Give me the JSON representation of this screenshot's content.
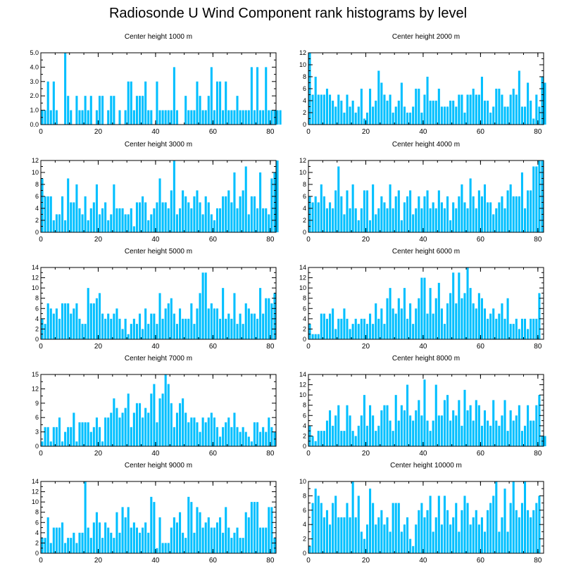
{
  "title": "Radiosonde U Wind Component rank histograms by level",
  "colors": {
    "bar": "#00BFFF",
    "axis": "#000000"
  },
  "chart_data": [
    {
      "type": "bar",
      "title": "Center height 1000 m",
      "xlim": [
        0,
        82
      ],
      "ylim": [
        0,
        5
      ],
      "xticks": [
        0,
        20,
        40,
        60,
        80
      ],
      "yticks": [
        "0.0",
        "1.0",
        "2.0",
        "3.0",
        "4.0",
        "5.0"
      ],
      "values": [
        1,
        1,
        3,
        1,
        3,
        1,
        0,
        0,
        5,
        2,
        1,
        0,
        2,
        1,
        1,
        2,
        1,
        2,
        0,
        1,
        2,
        2,
        0,
        1,
        2,
        2,
        0,
        1,
        0,
        1,
        3,
        3,
        1,
        2,
        2,
        2,
        3,
        1,
        1,
        0,
        3,
        1,
        1,
        1,
        1,
        1,
        4,
        1,
        0,
        0,
        2,
        1,
        1,
        1,
        3,
        2,
        1,
        1,
        2,
        4,
        1,
        3,
        3,
        1,
        3,
        1,
        1,
        1,
        2,
        1,
        1,
        1,
        1,
        4,
        1,
        4,
        1,
        1,
        4,
        1,
        1,
        1,
        1,
        1
      ]
    },
    {
      "type": "bar",
      "title": "Center height 2000 m",
      "xlim": [
        0,
        82
      ],
      "ylim": [
        0,
        12
      ],
      "xticks": [
        0,
        20,
        40,
        60,
        80
      ],
      "yticks": [
        "0",
        "2",
        "4",
        "6",
        "8",
        "10",
        "12"
      ],
      "values": [
        12,
        5,
        8,
        5,
        5,
        5,
        6,
        5,
        4,
        3,
        5,
        4,
        2,
        5,
        3,
        4,
        2,
        3,
        6,
        1,
        2,
        6,
        3,
        4,
        9,
        7,
        5,
        4,
        5,
        2,
        3,
        4,
        7,
        3,
        2,
        2,
        3,
        6,
        6,
        2,
        5,
        8,
        4,
        4,
        4,
        6,
        3,
        3,
        3,
        4,
        4,
        3,
        5,
        5,
        2,
        5,
        5,
        6,
        5,
        5,
        8,
        4,
        4,
        2,
        3,
        6,
        6,
        5,
        3,
        3,
        5,
        6,
        5,
        9,
        3,
        3,
        7,
        4,
        1,
        5,
        3,
        8,
        7
      ]
    },
    {
      "type": "bar",
      "title": "Center height 3000 m",
      "xlim": [
        0,
        82
      ],
      "ylim": [
        0,
        12
      ],
      "xticks": [
        0,
        20,
        40,
        60,
        80
      ],
      "yticks": [
        "0",
        "2",
        "4",
        "6",
        "8",
        "10",
        "12"
      ],
      "values": [
        9,
        6,
        6,
        6,
        2,
        3,
        3,
        6,
        2,
        9,
        5,
        5,
        8,
        4,
        3,
        6,
        2,
        4,
        5,
        8,
        3,
        4,
        5,
        2,
        3,
        8,
        4,
        4,
        4,
        3,
        3,
        4,
        1,
        5,
        5,
        6,
        5,
        2,
        3,
        4,
        5,
        9,
        5,
        5,
        4,
        7,
        12,
        3,
        4,
        7,
        6,
        5,
        4,
        6,
        7,
        5,
        3,
        6,
        5,
        3,
        2,
        4,
        4,
        6,
        6,
        7,
        5,
        10,
        4,
        6,
        7,
        11,
        3,
        6,
        6,
        4,
        10,
        4,
        4,
        3,
        9,
        10,
        12
      ]
    },
    {
      "type": "bar",
      "title": "Center height 4000 m",
      "xlim": [
        0,
        82
      ],
      "ylim": [
        0,
        12
      ],
      "xticks": [
        0,
        20,
        40,
        60,
        80
      ],
      "yticks": [
        "0",
        "2",
        "4",
        "6",
        "8",
        "10",
        "12"
      ],
      "values": [
        6,
        5,
        6,
        5,
        8,
        6,
        4,
        5,
        4,
        7,
        11,
        6,
        3,
        7,
        4,
        8,
        4,
        2,
        4,
        7,
        7,
        2,
        8,
        3,
        4,
        6,
        5,
        4,
        8,
        4,
        6,
        7,
        2,
        5,
        6,
        7,
        3,
        4,
        6,
        4,
        6,
        7,
        4,
        5,
        4,
        7,
        5,
        4,
        6,
        2,
        5,
        4,
        6,
        8,
        5,
        4,
        9,
        6,
        4,
        7,
        6,
        8,
        5,
        5,
        3,
        4,
        5,
        6,
        4,
        7,
        8,
        6,
        6,
        6,
        10,
        4,
        7,
        7,
        11,
        11,
        12,
        12
      ]
    },
    {
      "type": "bar",
      "title": "Center height 5000 m",
      "xlim": [
        0,
        82
      ],
      "ylim": [
        0,
        14
      ],
      "xticks": [
        0,
        20,
        40,
        60,
        80
      ],
      "yticks": [
        "0",
        "2",
        "4",
        "6",
        "8",
        "10",
        "12",
        "14"
      ],
      "values": [
        4,
        3,
        7,
        6,
        5,
        6,
        4,
        7,
        7,
        7,
        5,
        6,
        7,
        4,
        3,
        3,
        10,
        7,
        7,
        8,
        9,
        5,
        4,
        5,
        4,
        5,
        6,
        4,
        2,
        4,
        1,
        3,
        4,
        3,
        5,
        2,
        6,
        3,
        5,
        5,
        3,
        9,
        4,
        6,
        7,
        8,
        5,
        3,
        6,
        4,
        4,
        4,
        7,
        3,
        6,
        9,
        13,
        13,
        6,
        7,
        6,
        6,
        4,
        10,
        4,
        5,
        4,
        9,
        3,
        5,
        3,
        7,
        6,
        5,
        5,
        4,
        10,
        5,
        8,
        8,
        7,
        9
      ]
    },
    {
      "type": "bar",
      "title": "Center height 6000 m",
      "xlim": [
        0,
        82
      ],
      "ylim": [
        0,
        14
      ],
      "xticks": [
        0,
        20,
        40,
        60,
        80
      ],
      "yticks": [
        "0",
        "2",
        "4",
        "6",
        "8",
        "10",
        "12",
        "14"
      ],
      "values": [
        3,
        1,
        1,
        1,
        5,
        5,
        4,
        5,
        6,
        2,
        4,
        4,
        6,
        4,
        2,
        3,
        4,
        3,
        4,
        4,
        3,
        5,
        3,
        7,
        4,
        6,
        3,
        8,
        10,
        6,
        5,
        8,
        6,
        10,
        4,
        7,
        3,
        6,
        8,
        12,
        12,
        5,
        10,
        5,
        8,
        11,
        6,
        3,
        7,
        9,
        13,
        7,
        13,
        8,
        9,
        14,
        10,
        7,
        6,
        9,
        8,
        6,
        4,
        5,
        6,
        4,
        5,
        7,
        4,
        8,
        3,
        3,
        4,
        2,
        4,
        4,
        2,
        4,
        4,
        4,
        9
      ]
    },
    {
      "type": "bar",
      "title": "Center height 7000 m",
      "xlim": [
        0,
        82
      ],
      "ylim": [
        0,
        15
      ],
      "xticks": [
        0,
        20,
        40,
        60,
        80
      ],
      "yticks": [
        "0",
        "3",
        "6",
        "9",
        "12",
        "15"
      ],
      "values": [
        1,
        4,
        4,
        1,
        4,
        4,
        6,
        1,
        3,
        4,
        4,
        7,
        1,
        5,
        5,
        5,
        5,
        3,
        4,
        6,
        4,
        1,
        6,
        6,
        7,
        10,
        8,
        6,
        7,
        8,
        11,
        4,
        7,
        9,
        9,
        6,
        8,
        7,
        11,
        13,
        5,
        10,
        11,
        15,
        13,
        9,
        4,
        7,
        9,
        10,
        7,
        5,
        6,
        6,
        5,
        3,
        6,
        5,
        6,
        7,
        6,
        4,
        2,
        4,
        5,
        6,
        4,
        7,
        4,
        3,
        4,
        3,
        2,
        1,
        5,
        5,
        3,
        4,
        3,
        6,
        4,
        3
      ]
    },
    {
      "type": "bar",
      "title": "Center height 8000 m",
      "xlim": [
        0,
        82
      ],
      "ylim": [
        0,
        14
      ],
      "xticks": [
        0,
        20,
        40,
        60,
        80
      ],
      "yticks": [
        "0",
        "2",
        "4",
        "6",
        "8",
        "10",
        "12",
        "14"
      ],
      "values": [
        4,
        2,
        1,
        3,
        3,
        3,
        5,
        7,
        4,
        6,
        8,
        3,
        3,
        8,
        6,
        3,
        2,
        4,
        6,
        10,
        4,
        8,
        6,
        3,
        4,
        7,
        8,
        8,
        5,
        3,
        10,
        5,
        8,
        7,
        12,
        6,
        5,
        7,
        9,
        6,
        13,
        5,
        3,
        5,
        12,
        6,
        6,
        9,
        10,
        5,
        7,
        6,
        9,
        4,
        11,
        7,
        8,
        5,
        9,
        8,
        4,
        7,
        5,
        4,
        9,
        5,
        4,
        6,
        9,
        3,
        7,
        5,
        6,
        8,
        3,
        4,
        8,
        5,
        5,
        8,
        10,
        2,
        2
      ]
    },
    {
      "type": "bar",
      "title": "Center height 9000 m",
      "xlim": [
        0,
        82
      ],
      "ylim": [
        0,
        14
      ],
      "xticks": [
        0,
        20,
        40,
        60,
        80
      ],
      "yticks": [
        "0",
        "2",
        "4",
        "6",
        "8",
        "10",
        "12",
        "14"
      ],
      "values": [
        3,
        3,
        7,
        2,
        5,
        5,
        5,
        6,
        2,
        3,
        3,
        4,
        2,
        4,
        4,
        14,
        5,
        3,
        6,
        8,
        6,
        3,
        6,
        5,
        4,
        3,
        8,
        4,
        9,
        7,
        9,
        5,
        6,
        5,
        4,
        5,
        6,
        4,
        11,
        10,
        1,
        7,
        2,
        2,
        2,
        5,
        7,
        6,
        8,
        4,
        3,
        11,
        10,
        4,
        9,
        8,
        5,
        6,
        7,
        5,
        5,
        6,
        7,
        4,
        9,
        5,
        3,
        4,
        5,
        3,
        3,
        8,
        7,
        10,
        10,
        10,
        5,
        5,
        5,
        9,
        9,
        3
      ]
    },
    {
      "type": "bar",
      "title": "Center height 10000 m",
      "xlim": [
        0,
        82
      ],
      "ylim": [
        0,
        10
      ],
      "xticks": [
        0,
        20,
        40,
        60,
        80
      ],
      "yticks": [
        "0",
        "2",
        "4",
        "6",
        "8",
        "10"
      ],
      "values": [
        1,
        7,
        9,
        8,
        7,
        5,
        6,
        4,
        7,
        8,
        5,
        5,
        5,
        7,
        5,
        10,
        5,
        8,
        3,
        2,
        4,
        9,
        7,
        4,
        5,
        6,
        4,
        5,
        3,
        7,
        7,
        7,
        3,
        4,
        5,
        2,
        1,
        4,
        6,
        7,
        5,
        6,
        8,
        3,
        5,
        8,
        4,
        8,
        6,
        4,
        5,
        7,
        3,
        6,
        8,
        7,
        4,
        5,
        6,
        4,
        5,
        3,
        6,
        7,
        8,
        10,
        3,
        5,
        9,
        3,
        7,
        10,
        6,
        5,
        7,
        10,
        6,
        5,
        6,
        7,
        8
      ]
    }
  ]
}
